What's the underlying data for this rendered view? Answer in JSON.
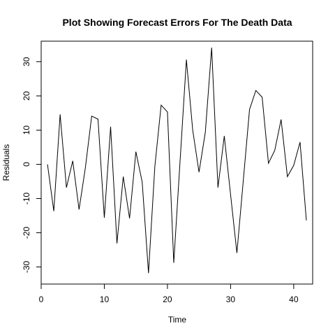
{
  "chart_data": {
    "type": "line",
    "title": "Plot Showing Forecast Errors For The Death Data",
    "xlabel": "Time",
    "ylabel": "Residuals",
    "xlim": [
      0,
      43
    ],
    "ylim": [
      -35,
      36
    ],
    "x_ticks": [
      0,
      10,
      20,
      30,
      40
    ],
    "y_ticks": [
      -30,
      -20,
      -10,
      0,
      10,
      20,
      30
    ],
    "x_tick_labels": [
      "0",
      "10",
      "20",
      "30",
      "40"
    ],
    "y_tick_labels": [
      "-30",
      "-20",
      "-10",
      "0",
      "10",
      "20",
      "30"
    ],
    "grid": false,
    "legend": "none",
    "line_color": "#000000",
    "series": [
      {
        "x": [
          1,
          2,
          3,
          4,
          5,
          6,
          7,
          8,
          9,
          10,
          11,
          12,
          13,
          14,
          15,
          16,
          17,
          18,
          19,
          20,
          21,
          22,
          23,
          24,
          25,
          26,
          27,
          28,
          29,
          30,
          31,
          32,
          33,
          34,
          35,
          36,
          37,
          38,
          39,
          40,
          41,
          42
        ],
        "values": [
          0,
          -13.7,
          14.6,
          -6.8,
          1,
          -13.2,
          -1,
          14.1,
          13.2,
          -15.6,
          11,
          -23.1,
          -3.6,
          -15.8,
          3.7,
          -5.2,
          -31.8,
          -0.7,
          17.3,
          15.3,
          -28.8,
          1,
          30.6,
          10,
          -2.3,
          9.4,
          34.1,
          -6.8,
          8.3,
          -8.9,
          -25.9,
          -5,
          16,
          21.6,
          19.6,
          0.3,
          4.1,
          13.1,
          -3.6,
          -0.3,
          6.5,
          -16.4
        ]
      }
    ]
  }
}
